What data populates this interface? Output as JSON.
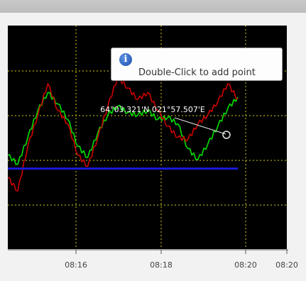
{
  "tooltip": {
    "icon": "info-icon",
    "text": "Double-Click to add point"
  },
  "chart_data": {
    "type": "line",
    "background": "#000000",
    "grid": true,
    "grid_color": "#d6d020",
    "x_tick_labels": [
      "08:16",
      "08:18",
      "08:20",
      "08:20"
    ],
    "cursor_label": "64°03.321'N 021°57.507'E",
    "series": [
      {
        "color": "#00e000",
        "values": [
          0.42,
          0.38,
          0.5,
          0.62,
          0.7,
          0.65,
          0.58,
          0.46,
          0.41,
          0.52,
          0.6,
          0.64,
          0.61,
          0.6,
          0.62,
          0.58,
          0.59,
          0.56,
          0.45,
          0.4,
          0.47,
          0.55,
          0.63,
          0.68
        ]
      },
      {
        "color": "#cc0000",
        "values": [
          0.32,
          0.26,
          0.46,
          0.6,
          0.74,
          0.62,
          0.56,
          0.42,
          0.37,
          0.5,
          0.64,
          0.77,
          0.72,
          0.67,
          0.7,
          0.62,
          0.55,
          0.5,
          0.49,
          0.56,
          0.6,
          0.66,
          0.74,
          0.67
        ]
      },
      {
        "color": "#1a1ad8",
        "values": [
          0.36,
          0.36,
          0.36,
          0.36,
          0.36,
          0.36,
          0.36,
          0.36,
          0.36,
          0.36,
          0.36,
          0.36,
          0.36,
          0.36,
          0.36,
          0.36,
          0.36,
          0.36,
          0.36,
          0.36,
          0.36,
          0.36,
          0.36,
          0.36
        ]
      }
    ]
  }
}
